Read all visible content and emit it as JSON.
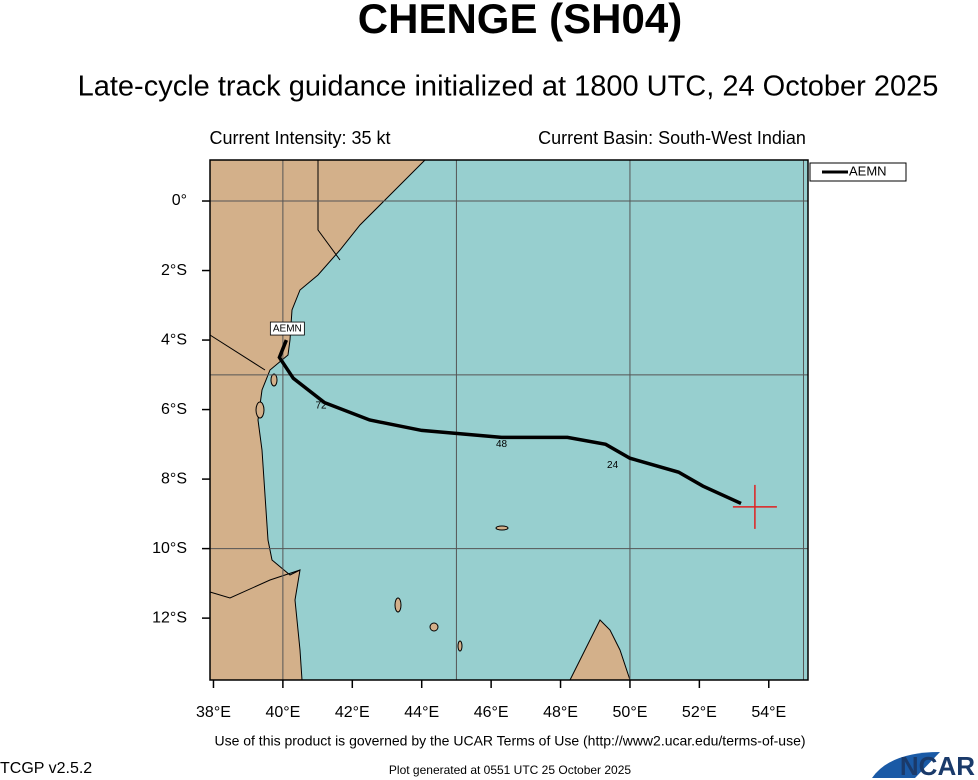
{
  "chart_data": {
    "type": "track-map",
    "title": "CHENGE (SH04)",
    "subtitle": "Late-cycle track guidance initialized at 1800 UTC, 24 October 2025",
    "left_note": "Current Intensity: 35 kt",
    "right_note": "Current Basin: South-West Indian",
    "xlim": [
      37.9,
      55.13
    ],
    "ylim": [
      -13.78,
      1.18
    ],
    "xticks": [
      {
        "value": 38,
        "label": "38°E"
      },
      {
        "value": 40,
        "label": "40°E"
      },
      {
        "value": 42,
        "label": "42°E"
      },
      {
        "value": 44,
        "label": "44°E"
      },
      {
        "value": 46,
        "label": "46°E"
      },
      {
        "value": 48,
        "label": "48°E"
      },
      {
        "value": 50,
        "label": "50°E"
      },
      {
        "value": 52,
        "label": "52°E"
      },
      {
        "value": 54,
        "label": "54°E"
      }
    ],
    "yticks": [
      {
        "value": 0,
        "label": "0°"
      },
      {
        "value": -2,
        "label": "2°S"
      },
      {
        "value": -4,
        "label": "4°S"
      },
      {
        "value": -6,
        "label": "6°S"
      },
      {
        "value": -8,
        "label": "8°S"
      },
      {
        "value": -10,
        "label": "10°S"
      },
      {
        "value": -12,
        "label": "12°S"
      }
    ],
    "xgrid": [
      40,
      45,
      50,
      55
    ],
    "ygrid": [
      0,
      -5,
      -10
    ],
    "series": [
      {
        "name": "AEMN",
        "color": "#000000",
        "x": [
          53.2,
          52.1,
          51.4,
          50.0,
          49.3,
          48.2,
          46.3,
          44.0,
          42.5,
          41.2,
          40.3,
          39.9,
          40.1
        ],
        "y": [
          -8.7,
          -8.2,
          -7.8,
          -7.4,
          -7.0,
          -6.8,
          -6.8,
          -6.6,
          -6.3,
          -5.8,
          -5.1,
          -4.5,
          -4.0
        ]
      }
    ],
    "annotations": [
      {
        "text": "72",
        "x": 41.1,
        "y": -5.9
      },
      {
        "text": "48",
        "x": 46.3,
        "y": -7.0
      },
      {
        "text": "24",
        "x": 49.5,
        "y": -7.6
      }
    ],
    "current_position": {
      "x": 53.6,
      "y": -8.8
    },
    "terms": "Use of this product is governed by the UCAR Terms of Use (http://www2.ucar.edu/terms-of-use)",
    "version": "TCGP v2.5.2",
    "generated": "Plot generated at 0551 UTC   25 October 2025",
    "logo": "NCAR"
  }
}
